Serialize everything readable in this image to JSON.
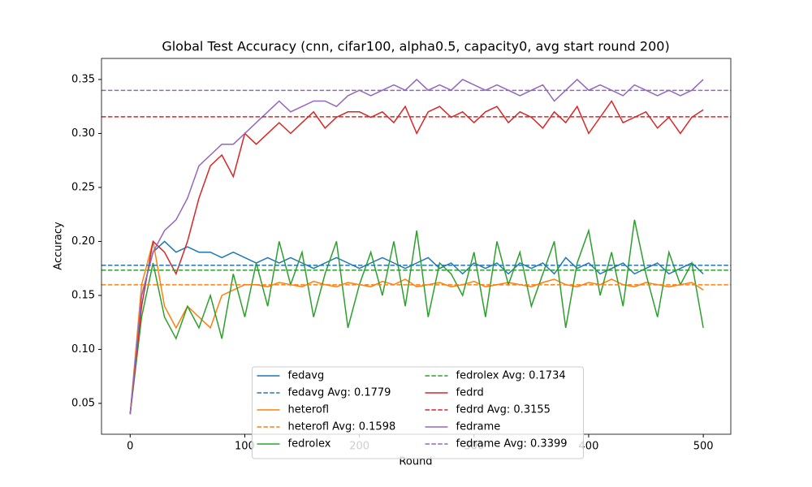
{
  "chart_data": {
    "type": "line",
    "title": "Global Test Accuracy (cnn, cifar100, alpha0.5, capacity0, avg start round 200)",
    "xlabel": "Round",
    "ylabel": "Accuracy",
    "xlim": [
      -25,
      524
    ],
    "ylim": [
      0.0214,
      0.3695
    ],
    "xticks": [
      0,
      100,
      200,
      300,
      400,
      500
    ],
    "yticks": [
      0.05,
      {
        "value": 0.1,
        "label": "0.10"
      },
      0.15,
      {
        "value": 0.2,
        "label": "0.20"
      },
      0.25,
      {
        "value": 0.3,
        "label": "0.30"
      },
      0.35
    ],
    "legend": "lower center",
    "x": [
      0,
      10,
      20,
      30,
      40,
      50,
      60,
      70,
      80,
      90,
      100,
      110,
      120,
      130,
      140,
      150,
      160,
      170,
      180,
      190,
      200,
      210,
      220,
      230,
      240,
      250,
      260,
      270,
      280,
      290,
      300,
      310,
      320,
      330,
      340,
      350,
      360,
      370,
      380,
      390,
      400,
      410,
      420,
      430,
      440,
      450,
      460,
      470,
      480,
      490,
      500
    ],
    "series": [
      {
        "name": "fedavg",
        "color": "#1f77b4",
        "values": [
          0.04,
          0.15,
          0.19,
          0.2,
          0.19,
          0.195,
          0.19,
          0.19,
          0.185,
          0.19,
          0.185,
          0.18,
          0.185,
          0.18,
          0.185,
          0.18,
          0.175,
          0.18,
          0.185,
          0.18,
          0.175,
          0.18,
          0.185,
          0.18,
          0.175,
          0.18,
          0.185,
          0.175,
          0.18,
          0.17,
          0.18,
          0.175,
          0.18,
          0.17,
          0.18,
          0.175,
          0.18,
          0.17,
          0.185,
          0.175,
          0.18,
          0.17,
          0.175,
          0.18,
          0.17,
          0.175,
          0.18,
          0.17,
          0.175,
          0.18,
          0.17
        ]
      },
      {
        "name": "heterofl",
        "color": "#ff7f0e",
        "values": [
          0.04,
          0.16,
          0.2,
          0.14,
          0.12,
          0.14,
          0.13,
          0.12,
          0.15,
          0.155,
          0.16,
          0.16,
          0.158,
          0.162,
          0.16,
          0.158,
          0.163,
          0.16,
          0.158,
          0.162,
          0.16,
          0.158,
          0.163,
          0.16,
          0.165,
          0.158,
          0.16,
          0.162,
          0.158,
          0.16,
          0.163,
          0.158,
          0.16,
          0.162,
          0.16,
          0.158,
          0.162,
          0.165,
          0.16,
          0.158,
          0.162,
          0.16,
          0.165,
          0.16,
          0.158,
          0.162,
          0.16,
          0.158,
          0.16,
          0.162,
          0.155
        ]
      },
      {
        "name": "fedrolex",
        "color": "#2ca02c",
        "values": [
          0.04,
          0.13,
          0.18,
          0.13,
          0.11,
          0.14,
          0.12,
          0.15,
          0.11,
          0.17,
          0.13,
          0.18,
          0.14,
          0.2,
          0.16,
          0.19,
          0.13,
          0.17,
          0.2,
          0.12,
          0.16,
          0.19,
          0.15,
          0.2,
          0.14,
          0.21,
          0.13,
          0.18,
          0.17,
          0.15,
          0.19,
          0.13,
          0.2,
          0.16,
          0.19,
          0.14,
          0.17,
          0.2,
          0.12,
          0.18,
          0.21,
          0.15,
          0.19,
          0.14,
          0.22,
          0.17,
          0.13,
          0.19,
          0.16,
          0.18,
          0.12
        ]
      },
      {
        "name": "fedrd",
        "color": "#d62728",
        "values": [
          0.04,
          0.14,
          0.2,
          0.19,
          0.17,
          0.2,
          0.24,
          0.27,
          0.28,
          0.26,
          0.3,
          0.29,
          0.3,
          0.31,
          0.3,
          0.31,
          0.32,
          0.305,
          0.315,
          0.32,
          0.32,
          0.315,
          0.32,
          0.31,
          0.325,
          0.3,
          0.32,
          0.325,
          0.315,
          0.32,
          0.31,
          0.32,
          0.325,
          0.31,
          0.32,
          0.315,
          0.305,
          0.32,
          0.31,
          0.325,
          0.3,
          0.315,
          0.33,
          0.31,
          0.315,
          0.32,
          0.305,
          0.315,
          0.3,
          0.315,
          0.322
        ]
      },
      {
        "name": "fedrame",
        "color": "#9467bd",
        "values": [
          0.04,
          0.15,
          0.19,
          0.21,
          0.22,
          0.24,
          0.27,
          0.28,
          0.29,
          0.29,
          0.3,
          0.31,
          0.32,
          0.33,
          0.32,
          0.325,
          0.33,
          0.33,
          0.325,
          0.335,
          0.34,
          0.335,
          0.34,
          0.345,
          0.34,
          0.35,
          0.34,
          0.345,
          0.34,
          0.35,
          0.345,
          0.34,
          0.345,
          0.34,
          0.335,
          0.34,
          0.345,
          0.33,
          0.34,
          0.35,
          0.34,
          0.345,
          0.34,
          0.335,
          0.345,
          0.34,
          0.335,
          0.34,
          0.335,
          0.34,
          0.35
        ]
      }
    ],
    "hlines": [
      {
        "name": "fedavg Avg: 0.1779",
        "color": "#1f77b4",
        "value": 0.1779
      },
      {
        "name": "heterofl Avg: 0.1598",
        "color": "#ff7f0e",
        "value": 0.1598
      },
      {
        "name": "fedrolex Avg: 0.1734",
        "color": "#2ca02c",
        "value": 0.1734
      },
      {
        "name": "fedrd Avg: 0.3155",
        "color": "#d62728",
        "value": 0.3155
      },
      {
        "name": "fedrame Avg: 0.3399",
        "color": "#9467bd",
        "value": 0.3399
      }
    ]
  }
}
